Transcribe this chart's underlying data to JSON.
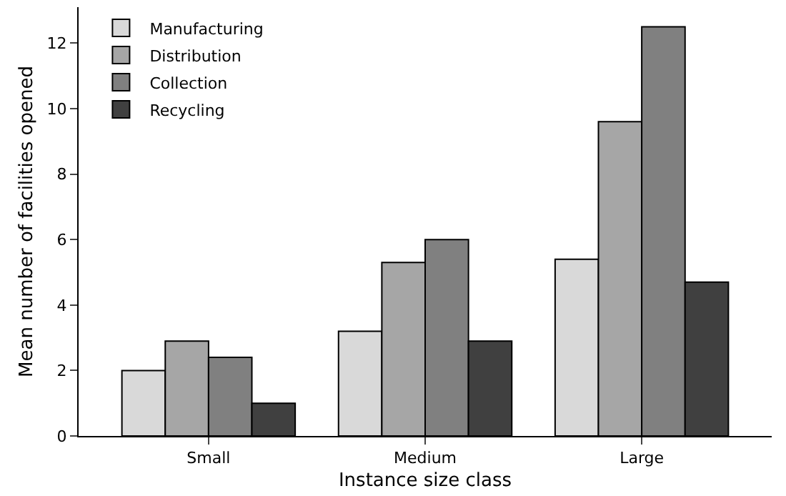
{
  "chart_data": {
    "type": "bar",
    "xlabel": "Instance size class",
    "ylabel": "Mean number of facilities opened",
    "categories": [
      "Small",
      "Medium",
      "Large"
    ],
    "series": [
      {
        "name": "Manufacturing",
        "color": "#d9d9d9",
        "values": [
          2.0,
          3.2,
          5.4
        ]
      },
      {
        "name": "Distribution",
        "color": "#a6a6a6",
        "values": [
          2.9,
          5.3,
          9.6
        ]
      },
      {
        "name": "Collection",
        "color": "#808080",
        "values": [
          2.4,
          6.0,
          12.5
        ]
      },
      {
        "name": "Recycling",
        "color": "#404040",
        "values": [
          1.0,
          2.9,
          4.7
        ]
      }
    ],
    "ylim": [
      0,
      13.1
    ],
    "yticks": [
      0,
      2,
      4,
      6,
      8,
      10,
      12
    ],
    "legend": "top left"
  }
}
